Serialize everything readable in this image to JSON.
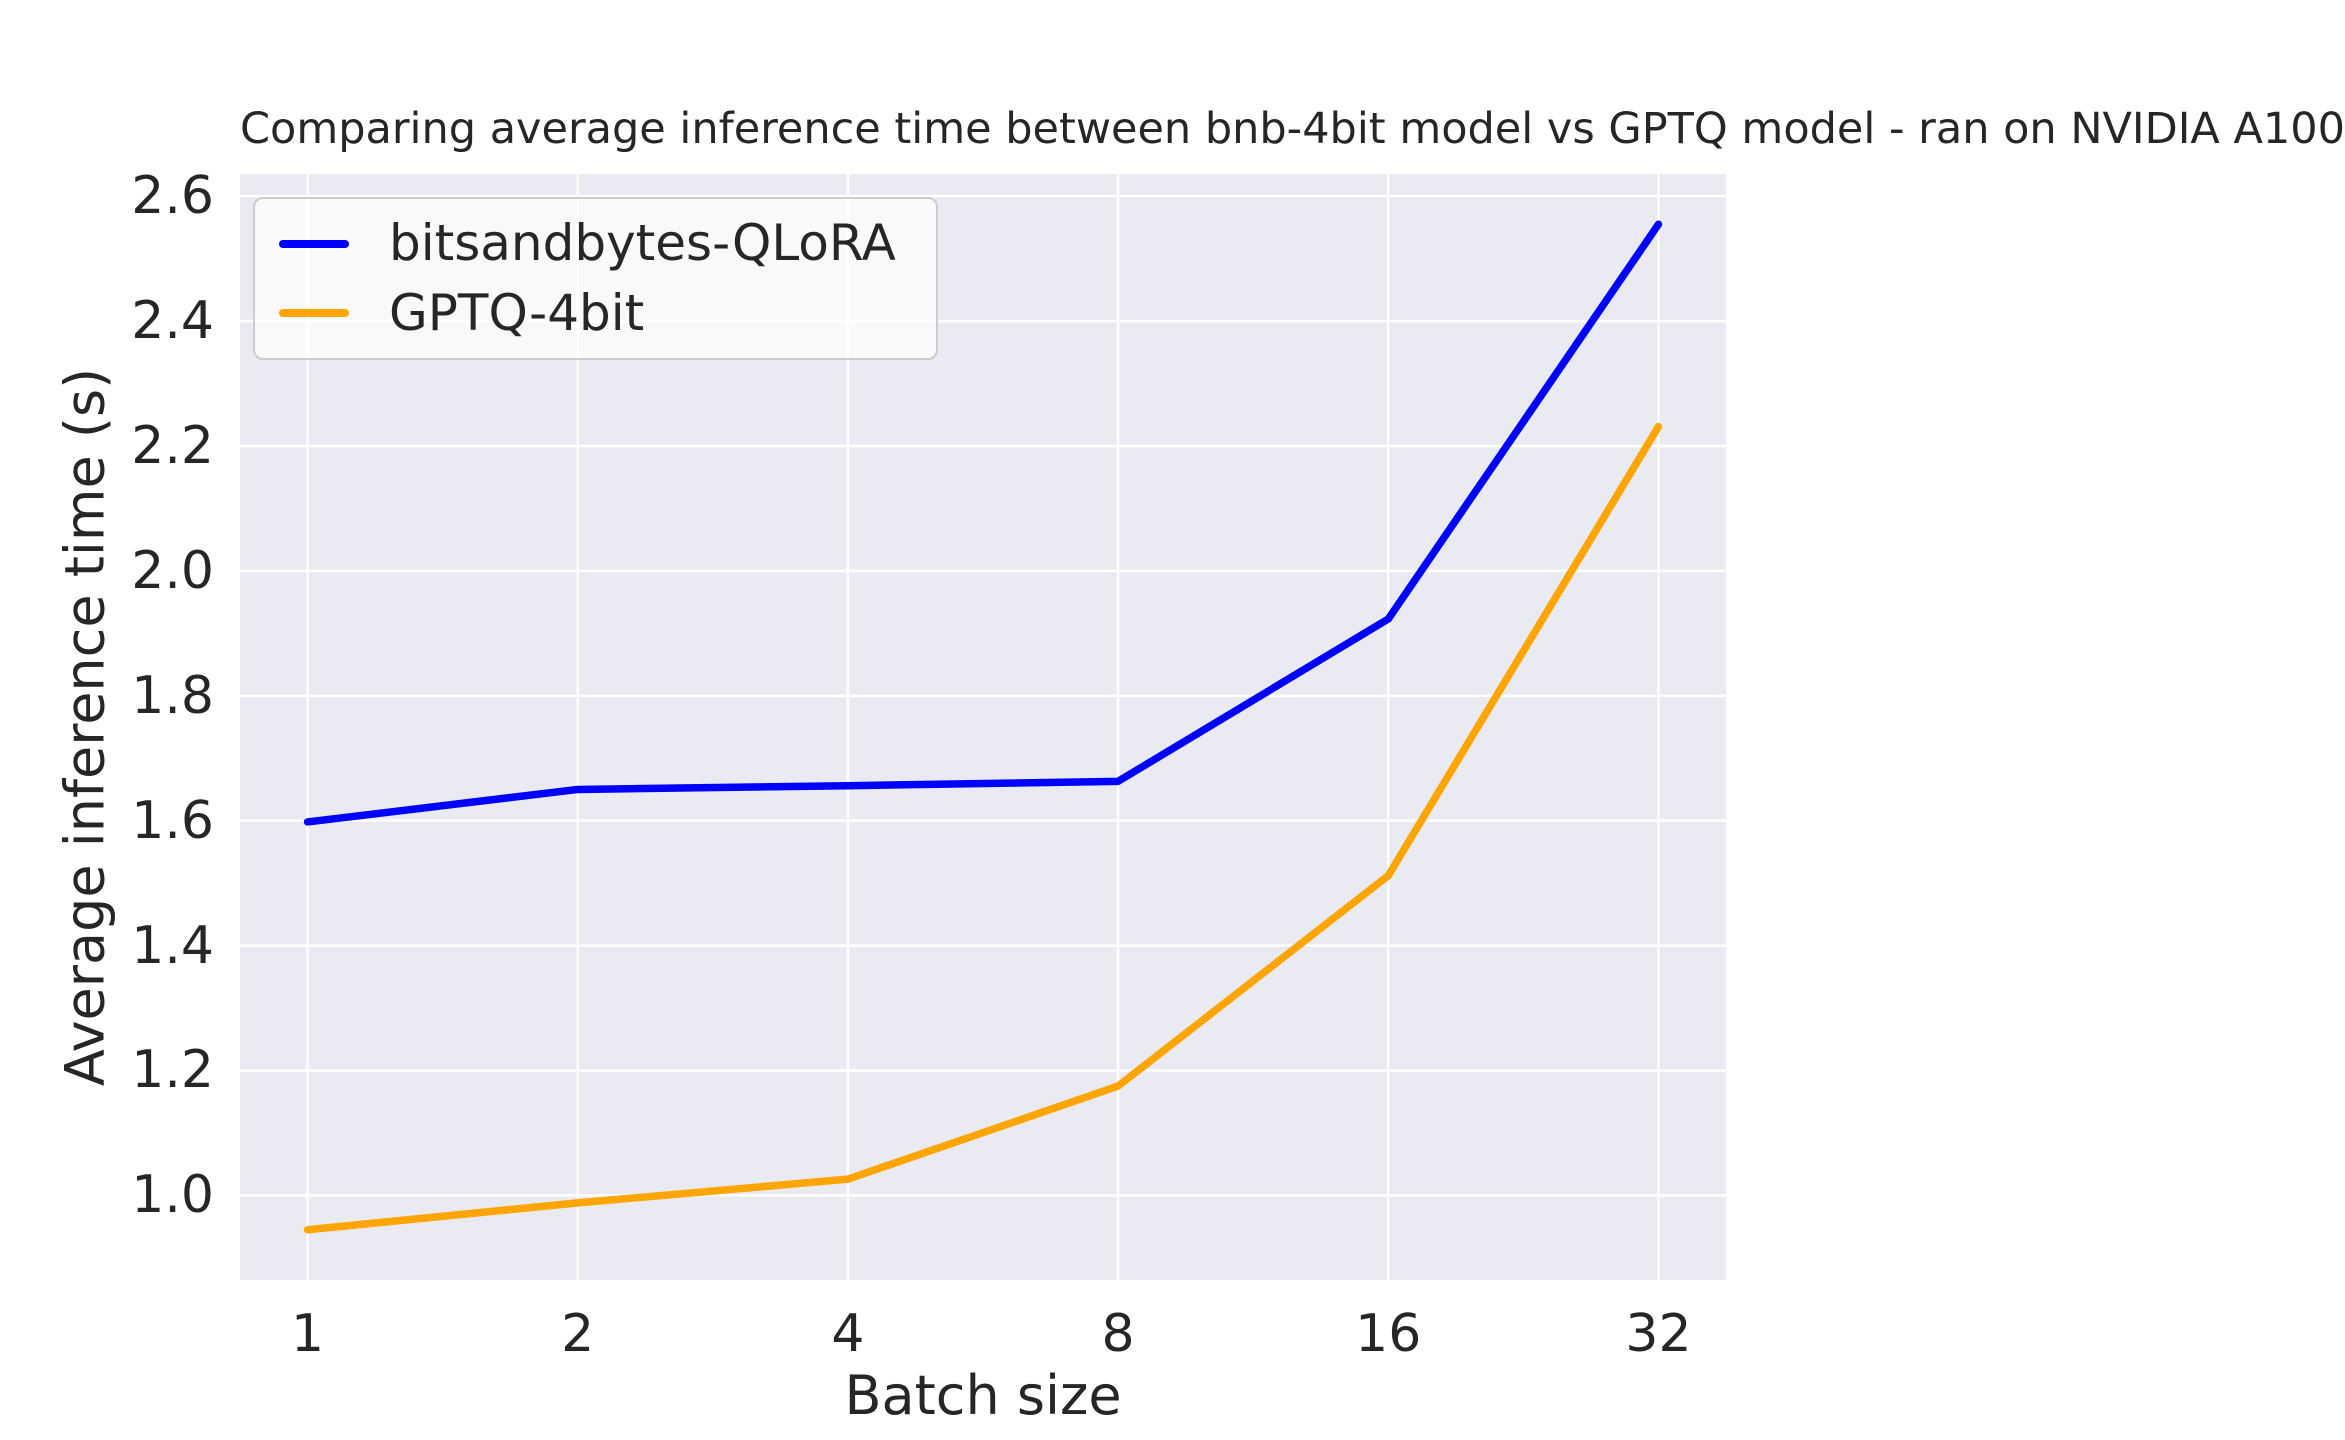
{
  "chart_data": {
    "type": "line",
    "title": "Comparing average inference time between bnb-4bit model vs GPTQ model - ran on NVIDIA A100",
    "xlabel": "Batch size",
    "ylabel": "Average inference time (s)",
    "x": [
      1,
      2,
      4,
      8,
      16,
      32
    ],
    "x_scale": "log2",
    "xtick_labels": [
      "1",
      "2",
      "4",
      "8",
      "16",
      "32"
    ],
    "series": [
      {
        "name": "bitsandbytes-QLoRA",
        "color": "#0000ff",
        "values": [
          1.598,
          1.65,
          1.656,
          1.663,
          1.923,
          2.555
        ]
      },
      {
        "name": "GPTQ-4bit",
        "color": "#ffa500",
        "values": [
          0.945,
          0.988,
          1.026,
          1.175,
          1.512,
          2.231
        ]
      }
    ],
    "yticks": [
      1.0,
      1.2,
      1.4,
      1.6,
      1.8,
      2.0,
      2.2,
      2.4,
      2.6
    ],
    "ytick_labels": [
      "1.0",
      "1.2",
      "1.4",
      "1.6",
      "1.8",
      "2.0",
      "2.2",
      "2.4",
      "2.6"
    ],
    "ylim": [
      0.8645,
      2.6355
    ],
    "x_index_lim": [
      -0.25,
      5.25
    ],
    "grid": true,
    "grid_color": "#ffffff",
    "plot_bg": "#eaeaf2",
    "text_color": "#262626",
    "legend_position": "upper left",
    "line_width": 7.5
  }
}
